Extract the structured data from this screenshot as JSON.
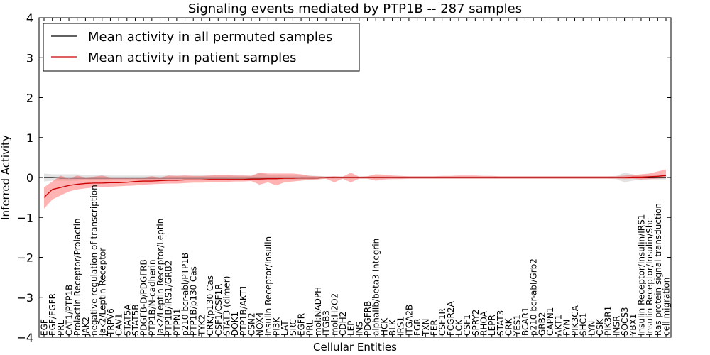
{
  "chart_data": {
    "type": "line",
    "title": "Signaling events mediated by PTP1B -- 287 samples",
    "xlabel": "Cellular Entities",
    "ylabel": "Inferred Activity",
    "ylim": [
      -4,
      4
    ],
    "yticks": [
      -4,
      -3,
      -2,
      -1,
      0,
      1,
      2,
      3,
      4
    ],
    "ytick_labels": [
      "−4",
      "−3",
      "−2",
      "−1",
      "0",
      "1",
      "2",
      "3",
      "4"
    ],
    "legend_placement": "top-left",
    "categories": [
      "EGF",
      "EGF/EGFR",
      "PRL",
      "CAT1/PTP1B",
      "Prolactin Receptor/Prolactin",
      "JAK2",
      "negative regulation of transcription",
      "Jak2/Leptin Receptor",
      "TRPV6",
      "CAV1",
      "STAT5A",
      "STAT5B",
      "PDGFB-D/PDGFRB",
      "PTP1B/N-cadherin",
      "Jak2/Leptin Receptor/Leptin",
      "PTP1B/IRS1/GRB2",
      "PTPN1",
      "p210 bcr-abl/PTP1B",
      "PTP1B/p130 Cas",
      "TYK2",
      "CRK/p130 Cas",
      "CSF1/CSF1R",
      "STAT3 (dimer)",
      "DOK1",
      "PTP1B/AKT1",
      "CSN2",
      "NOX4",
      "Insulin Receptor/Insulin",
      "PI3K",
      "LAT",
      "SRC",
      "EGFR",
      "PRL",
      "mol:NADPH",
      "ITGB3",
      "mol:H2O2",
      "CDH2",
      "LEP",
      "INS",
      "PDGFRB",
      "alphaIIb/beta3 Integrin",
      "HCK",
      "BLK",
      "IRS1",
      "ITGA2B",
      "FGR",
      "TXN",
      "FER",
      "CSF1R",
      "FCGR2A",
      "LCK",
      "CSF1",
      "SPRY2",
      "RHOA",
      "LEPR",
      "STAT3",
      "CRK",
      "YES1",
      "BCAR1",
      "p210 bcr-abl/Grb2",
      "GRB2",
      "CAPN1",
      "AKT1",
      "FYN",
      "PIK3CA",
      "SHC1",
      "LYN",
      "CSK",
      "PIK3R1",
      "INSR",
      "SOCS3",
      "YBX1",
      "Insulin Receptor/Insulin/IRS1",
      "Insulin Receptor/Insulin/Shc",
      "Ras protein signal transduction",
      "cell migration"
    ],
    "series": [
      {
        "name": "Mean activity in all permuted samples",
        "color": "#000000",
        "band_color": "#c0c0c0",
        "values": [
          0.0,
          0.0,
          -0.01,
          -0.01,
          -0.01,
          -0.01,
          -0.01,
          -0.01,
          -0.01,
          -0.01,
          -0.01,
          -0.01,
          -0.01,
          -0.01,
          -0.01,
          -0.01,
          -0.01,
          -0.01,
          -0.01,
          -0.01,
          -0.01,
          -0.01,
          -0.01,
          -0.01,
          -0.01,
          -0.01,
          -0.01,
          -0.01,
          -0.01,
          -0.01,
          -0.01,
          -0.01,
          -0.01,
          -0.01,
          0.0,
          0.0,
          0.0,
          0.0,
          0.0,
          0.0,
          0.0,
          0.0,
          0.0,
          0.0,
          0.0,
          0.0,
          0.0,
          0.0,
          0.0,
          0.0,
          0.0,
          0.0,
          0.0,
          0.0,
          0.0,
          0.0,
          0.0,
          0.0,
          0.0,
          0.0,
          0.0,
          0.0,
          0.0,
          0.0,
          0.0,
          0.0,
          0.0,
          0.0,
          0.0,
          0.0,
          0.0,
          0.0,
          0.0,
          0.0,
          0.0,
          0.0
        ],
        "lower": [
          -0.1,
          -0.08,
          -0.08,
          -0.08,
          -0.08,
          -0.06,
          -0.06,
          -0.06,
          -0.05,
          -0.05,
          -0.05,
          -0.05,
          -0.05,
          -0.05,
          -0.05,
          -0.05,
          -0.05,
          -0.05,
          -0.05,
          -0.05,
          -0.05,
          -0.05,
          -0.05,
          -0.05,
          -0.05,
          -0.05,
          -0.08,
          -0.06,
          -0.06,
          -0.05,
          -0.05,
          -0.05,
          -0.05,
          -0.04,
          -0.03,
          -0.03,
          -0.03,
          -0.03,
          -0.03,
          -0.03,
          -0.03,
          -0.03,
          -0.03,
          -0.03,
          -0.03,
          -0.03,
          -0.03,
          -0.03,
          -0.03,
          -0.03,
          -0.03,
          -0.03,
          -0.03,
          -0.03,
          -0.03,
          -0.03,
          -0.03,
          -0.03,
          -0.03,
          -0.03,
          -0.03,
          -0.03,
          -0.03,
          -0.03,
          -0.03,
          -0.03,
          -0.03,
          -0.03,
          -0.03,
          -0.04,
          -0.12,
          -0.08,
          -0.05,
          -0.05,
          -0.05,
          -0.05
        ],
        "upper": [
          0.1,
          0.08,
          0.08,
          0.08,
          0.08,
          0.06,
          0.06,
          0.06,
          0.05,
          0.05,
          0.05,
          0.05,
          0.05,
          0.05,
          0.05,
          0.05,
          0.05,
          0.05,
          0.05,
          0.05,
          0.05,
          0.05,
          0.05,
          0.05,
          0.05,
          0.05,
          0.12,
          0.07,
          0.06,
          0.05,
          0.05,
          0.05,
          0.05,
          0.04,
          0.03,
          0.03,
          0.03,
          0.03,
          0.03,
          0.03,
          0.03,
          0.03,
          0.03,
          0.03,
          0.03,
          0.03,
          0.03,
          0.03,
          0.03,
          0.03,
          0.03,
          0.03,
          0.03,
          0.03,
          0.03,
          0.03,
          0.03,
          0.03,
          0.03,
          0.03,
          0.03,
          0.03,
          0.03,
          0.03,
          0.03,
          0.03,
          0.03,
          0.03,
          0.03,
          0.04,
          0.12,
          0.08,
          0.05,
          0.05,
          0.05,
          0.05
        ]
      },
      {
        "name": "Mean activity in patient samples",
        "color": "#cc0000",
        "band_color": "#ff4040",
        "values": [
          -0.5,
          -0.3,
          -0.25,
          -0.2,
          -0.17,
          -0.15,
          -0.14,
          -0.14,
          -0.13,
          -0.13,
          -0.12,
          -0.1,
          -0.09,
          -0.09,
          -0.08,
          -0.07,
          -0.07,
          -0.06,
          -0.06,
          -0.06,
          -0.05,
          -0.05,
          -0.05,
          -0.05,
          -0.05,
          -0.04,
          -0.04,
          -0.03,
          -0.03,
          -0.02,
          -0.02,
          -0.01,
          -0.01,
          -0.01,
          0.0,
          0.0,
          0.0,
          0.0,
          0.0,
          0.0,
          0.0,
          0.0,
          0.0,
          0.0,
          0.0,
          0.0,
          0.0,
          0.0,
          0.0,
          0.0,
          0.0,
          0.0,
          0.0,
          0.0,
          0.0,
          0.0,
          0.0,
          0.0,
          0.0,
          0.0,
          0.0,
          0.0,
          0.0,
          0.0,
          0.0,
          0.0,
          0.0,
          0.0,
          0.0,
          0.0,
          0.0,
          0.01,
          0.01,
          0.02,
          0.03,
          0.05
        ],
        "lower": [
          -0.78,
          -0.55,
          -0.45,
          -0.35,
          -0.3,
          -0.27,
          -0.25,
          -0.24,
          -0.23,
          -0.22,
          -0.21,
          -0.2,
          -0.18,
          -0.17,
          -0.16,
          -0.15,
          -0.15,
          -0.14,
          -0.13,
          -0.13,
          -0.12,
          -0.11,
          -0.11,
          -0.1,
          -0.1,
          -0.09,
          -0.18,
          -0.12,
          -0.2,
          -0.12,
          -0.1,
          -0.08,
          -0.06,
          -0.05,
          -0.03,
          -0.12,
          -0.03,
          -0.12,
          -0.03,
          -0.03,
          -0.08,
          -0.05,
          -0.04,
          -0.04,
          -0.03,
          -0.03,
          -0.03,
          -0.03,
          -0.03,
          -0.03,
          -0.03,
          -0.03,
          -0.03,
          -0.03,
          -0.03,
          -0.03,
          -0.03,
          -0.03,
          -0.03,
          -0.03,
          -0.03,
          -0.03,
          -0.03,
          -0.03,
          -0.03,
          -0.03,
          -0.03,
          -0.03,
          -0.03,
          -0.03,
          -0.04,
          -0.03,
          -0.05,
          -0.04,
          -0.03,
          -0.02
        ],
        "upper": [
          -0.25,
          -0.1,
          0.05,
          -0.03,
          0.05,
          0.0,
          0.02,
          0.05,
          0.0,
          0.0,
          0.0,
          0.0,
          0.0,
          0.03,
          0.0,
          0.05,
          0.04,
          0.05,
          0.04,
          0.04,
          0.05,
          0.06,
          0.06,
          0.05,
          0.05,
          0.04,
          0.12,
          0.1,
          0.1,
          0.1,
          0.1,
          0.08,
          0.04,
          0.03,
          0.02,
          0.03,
          0.02,
          0.12,
          0.02,
          0.03,
          0.08,
          0.07,
          0.05,
          0.04,
          0.03,
          0.03,
          0.03,
          0.03,
          0.04,
          0.04,
          0.05,
          0.05,
          0.05,
          0.04,
          0.04,
          0.03,
          0.03,
          0.03,
          0.03,
          0.03,
          0.03,
          0.03,
          0.03,
          0.03,
          0.03,
          0.03,
          0.03,
          0.03,
          0.03,
          0.03,
          0.05,
          0.06,
          0.08,
          0.1,
          0.15,
          0.2
        ]
      }
    ]
  }
}
